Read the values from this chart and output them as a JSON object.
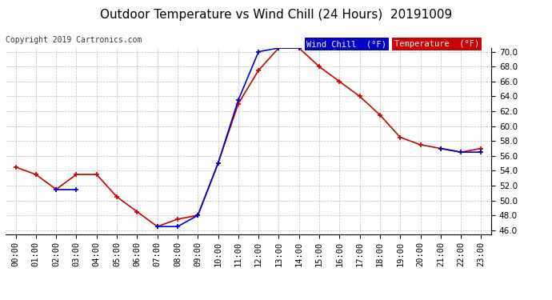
{
  "title": "Outdoor Temperature vs Wind Chill (24 Hours)  20191009",
  "copyright": "Copyright 2019 Cartronics.com",
  "hours": [
    "00:00",
    "01:00",
    "02:00",
    "03:00",
    "04:00",
    "05:00",
    "06:00",
    "07:00",
    "08:00",
    "09:00",
    "10:00",
    "11:00",
    "12:00",
    "13:00",
    "14:00",
    "15:00",
    "16:00",
    "17:00",
    "18:00",
    "19:00",
    "20:00",
    "21:00",
    "22:00",
    "23:00"
  ],
  "temperature": [
    54.5,
    53.5,
    51.5,
    53.5,
    53.5,
    50.5,
    48.5,
    46.5,
    47.5,
    48.0,
    55.0,
    63.0,
    67.5,
    70.5,
    70.5,
    68.0,
    66.0,
    64.0,
    61.5,
    58.5,
    57.5,
    57.0,
    56.5,
    57.0
  ],
  "wind_chill": [
    null,
    null,
    51.5,
    51.5,
    null,
    null,
    null,
    46.5,
    46.5,
    48.0,
    55.0,
    63.5,
    70.0,
    70.5,
    70.5,
    null,
    null,
    null,
    null,
    null,
    null,
    57.0,
    56.5,
    56.5
  ],
  "temp_color": "#cc0000",
  "wind_chill_color": "#0000cc",
  "ylim_min": 45.5,
  "ylim_max": 70.5,
  "yticks": [
    46.0,
    48.0,
    50.0,
    52.0,
    54.0,
    56.0,
    58.0,
    60.0,
    62.0,
    64.0,
    66.0,
    68.0,
    70.0
  ],
  "background_color": "#ffffff",
  "grid_color": "#bbbbbb",
  "title_fontsize": 11,
  "copyright_fontsize": 7,
  "legend_wind_chill_bg": "#0000cc",
  "legend_temp_bg": "#cc0000",
  "legend_text_color": "#ffffff",
  "legend_fontsize": 7.5,
  "tick_fontsize": 7.5
}
